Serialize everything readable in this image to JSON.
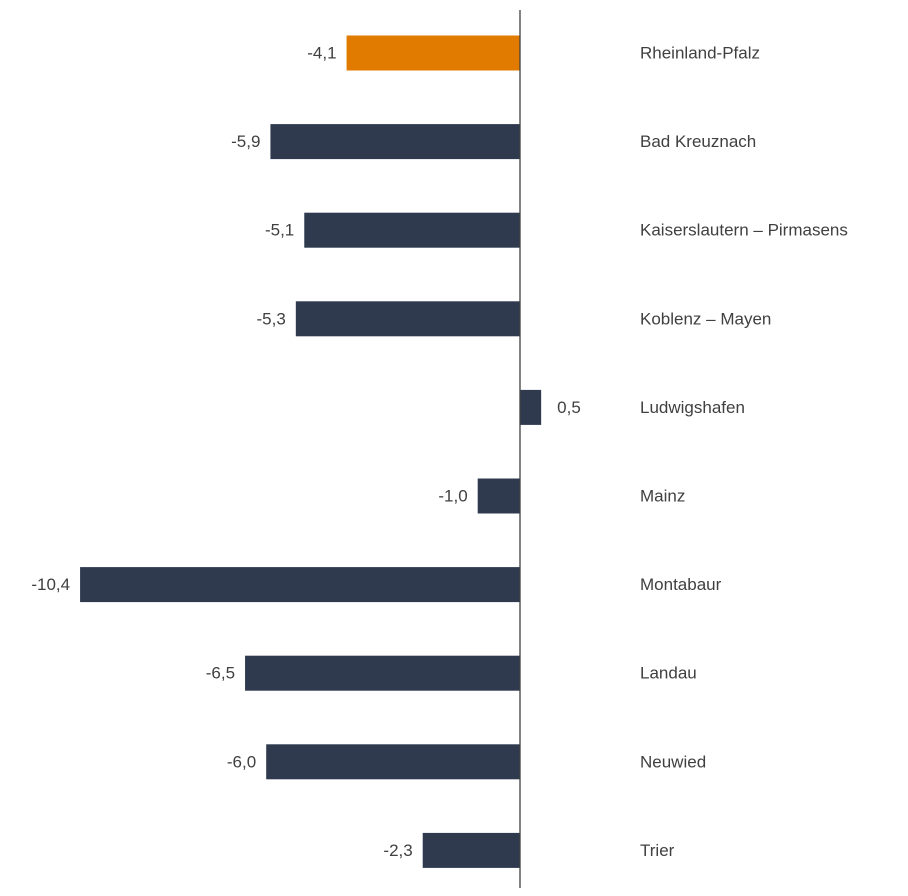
{
  "chart_data": {
    "type": "bar",
    "orientation": "horizontal",
    "title": "",
    "xlabel": "",
    "ylabel": "",
    "categories": [
      "Rheinland-Pfalz",
      "Bad Kreuznach",
      "Kaiserslautern – Pirmasens",
      "Koblenz – Mayen",
      "Ludwigshafen",
      "Mainz",
      "Montabaur",
      "Landau",
      "Neuwied",
      "Trier"
    ],
    "values": [
      -4.1,
      -5.9,
      -5.1,
      -5.3,
      0.5,
      -1.0,
      -10.4,
      -6.5,
      -6.0,
      -2.3
    ],
    "value_labels": [
      "-4,1",
      "-5,9",
      "-5,1",
      "-5,3",
      "0,5",
      "-1,0",
      "-10,4",
      "-6,5",
      "-6,0",
      "-2,3"
    ],
    "highlight_index": 0,
    "colors": {
      "default_bar": "#2f3a4f",
      "highlight_bar": "#e07b00",
      "axis": "#404040",
      "text": "#404040"
    },
    "grid": false,
    "legend": "none"
  }
}
